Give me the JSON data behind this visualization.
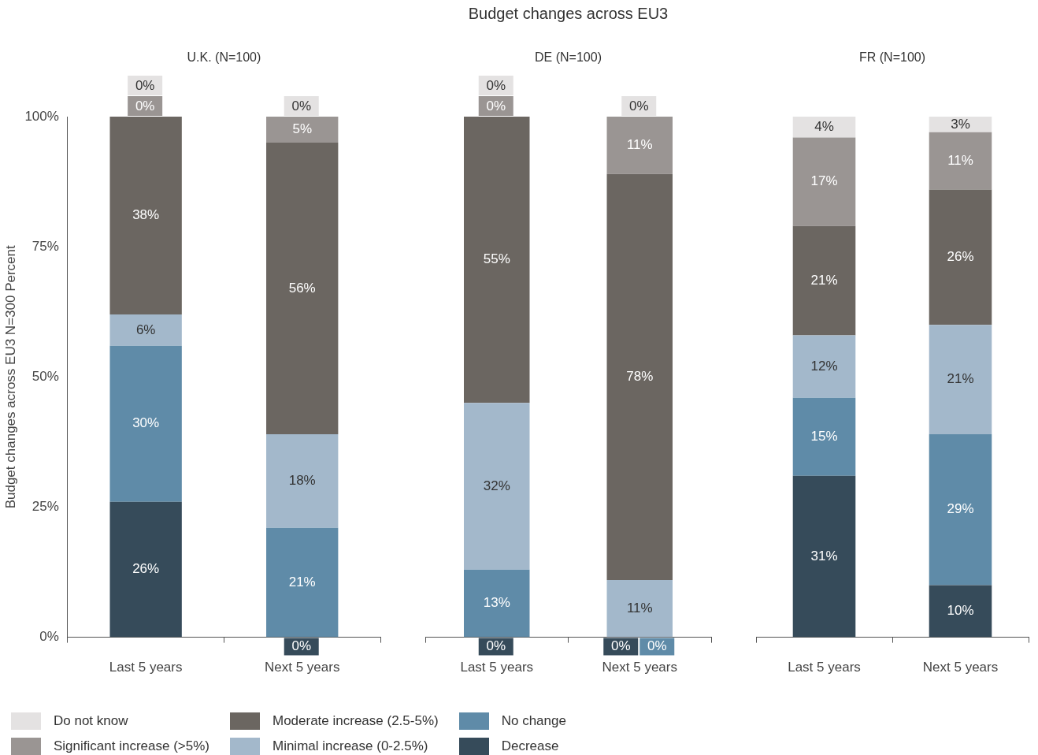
{
  "chart_data": [
    {
      "type": "bar",
      "stacked": true,
      "subtitle": "U.K. (N=100)",
      "ylabel": "Budget changes across EU3 N=300 Percent",
      "legend": "bottom",
      "categories": [
        "Last 5 years",
        "Next 5 years"
      ],
      "ylim": [
        0,
        100
      ],
      "yticks": [
        {
          "value": 0,
          "label": "0%"
        },
        {
          "value": 25,
          "label": "25%"
        },
        {
          "value": 50,
          "label": "50%"
        },
        {
          "value": 75,
          "label": "75%"
        },
        {
          "value": 100,
          "label": "100%"
        }
      ],
      "series": [
        {
          "name": "Decrease",
          "color": "#364b5a",
          "values": [
            26,
            0
          ],
          "value_labels": [
            "26%",
            "0%"
          ]
        },
        {
          "name": "No change",
          "color": "#5f8ba8",
          "values": [
            30,
            21
          ],
          "value_labels": [
            "30%",
            "21%"
          ]
        },
        {
          "name": "Minimal increase (0-2.5%)",
          "color": "#a3b8cb",
          "values": [
            6,
            18
          ],
          "value_labels": [
            "6%",
            "18%"
          ]
        },
        {
          "name": "Moderate increase (2.5-5%)",
          "color": "#6b6661",
          "values": [
            38,
            56
          ],
          "value_labels": [
            "38%",
            "56%"
          ]
        },
        {
          "name": "Significant increase (>5%)",
          "color": "#9a9593",
          "values": [
            0,
            5
          ],
          "value_labels": [
            "0%",
            "5%"
          ]
        },
        {
          "name": "Do not know",
          "color": "#e4e2e2",
          "values": [
            0,
            0
          ],
          "value_labels": [
            "0%",
            "0%"
          ]
        }
      ]
    },
    {
      "type": "bar",
      "stacked": true,
      "title": "Budget changes across EU3",
      "subtitle": "DE (N=100)",
      "tick_labels": "x",
      "categories": [
        "Last 5 years",
        "Next 5 years"
      ],
      "ylim": [
        0,
        100
      ],
      "series": [
        {
          "color": "#364b5a",
          "values": [
            0,
            0
          ],
          "value_labels": [
            "0%",
            "0%"
          ]
        },
        {
          "color": "#5f8ba8",
          "values": [
            13,
            0
          ],
          "value_labels": [
            "13%",
            "0%"
          ]
        },
        {
          "color": "#a3b8cb",
          "values": [
            32,
            11
          ],
          "value_labels": [
            "32%",
            "11%"
          ]
        },
        {
          "color": "#6b6661",
          "values": [
            55,
            78
          ],
          "value_labels": [
            "55%",
            "78%"
          ]
        },
        {
          "color": "#9a9593",
          "values": [
            0,
            11
          ],
          "value_labels": [
            "0%",
            "11%"
          ]
        },
        {
          "color": "#e4e2e2",
          "values": [
            0,
            0
          ],
          "value_labels": [
            "0%",
            "0%"
          ]
        }
      ]
    },
    {
      "type": "bar",
      "stacked": true,
      "subtitle": "FR (N=100)",
      "tick_labels": "x",
      "categories": [
        "Last 5 years",
        "Next 5 years"
      ],
      "ylim": [
        0,
        100
      ],
      "series": [
        {
          "color": "#364b5a",
          "values": [
            31,
            10
          ],
          "value_labels": [
            "31%",
            "10%"
          ]
        },
        {
          "color": "#5f8ba8",
          "values": [
            15,
            29
          ],
          "value_labels": [
            "15%",
            "29%"
          ]
        },
        {
          "color": "#a3b8cb",
          "values": [
            12,
            21
          ],
          "value_labels": [
            "12%",
            "21%"
          ]
        },
        {
          "color": "#6b6661",
          "values": [
            21,
            26
          ],
          "value_labels": [
            "21%",
            "26%"
          ]
        },
        {
          "color": "#9a9593",
          "values": [
            17,
            11
          ],
          "value_labels": [
            "17%",
            "11%"
          ]
        },
        {
          "color": "#e4e2e2",
          "values": [
            4,
            3
          ],
          "value_labels": [
            "4%",
            "3%"
          ]
        }
      ]
    }
  ]
}
